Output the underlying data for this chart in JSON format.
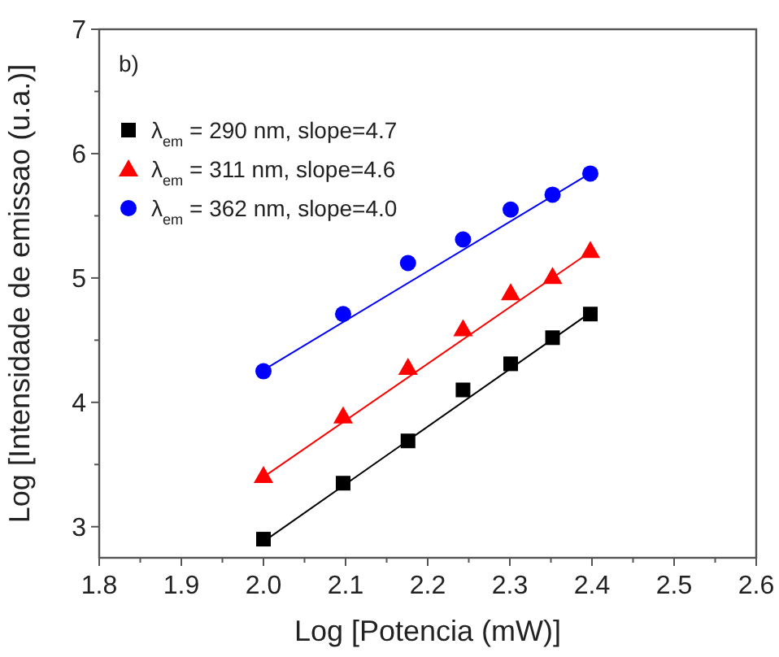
{
  "chart_data": {
    "type": "scatter",
    "xlabel": "Log [Potencia (mW)]",
    "ylabel": "Log [Intensidade de emissao (u.a.)]",
    "annotations": [
      "b)"
    ],
    "xlim": [
      1.8,
      2.6
    ],
    "xticks": [
      1.8,
      {
        "value": 1.85,
        "label": null
      },
      1.9,
      {
        "value": 1.95,
        "label": null
      },
      {
        "value": 2,
        "label": "2.0"
      },
      {
        "value": 2.05,
        "label": null
      },
      2.1,
      {
        "value": 2.15,
        "label": null
      },
      2.2,
      {
        "value": 2.25,
        "label": null
      },
      2.3,
      {
        "value": 2.35,
        "label": null
      },
      2.4,
      {
        "value": 2.45,
        "label": null
      },
      2.5,
      {
        "value": 2.55,
        "label": null
      },
      2.6
    ],
    "ylim": [
      2.75,
      7
    ],
    "yticks": [
      3,
      {
        "value": 3.5,
        "label": null
      },
      4,
      {
        "value": 4.5,
        "label": null
      },
      5,
      {
        "value": 5.5,
        "label": null
      },
      6,
      {
        "value": 6.5,
        "label": null
      },
      7
    ],
    "grid": false,
    "legend": "top left",
    "series": [
      {
        "name": "λ$_{em}$ = 290 nm, slope=4.7",
        "color": "#000000",
        "marker": "square",
        "x": [
          2.0,
          2.097,
          2.176,
          2.243,
          2.301,
          2.352,
          2.398
        ],
        "values": [
          2.9,
          3.35,
          3.69,
          4.1,
          4.31,
          4.52,
          4.71
        ]
      },
      {
        "name": "λ$_{em}$ = 311 nm, slope=4.6",
        "color": "#ff0000",
        "marker": "triangle",
        "x": [
          2.0,
          2.097,
          2.176,
          2.243,
          2.301,
          2.352,
          2.398
        ],
        "values": [
          3.41,
          3.89,
          4.28,
          4.59,
          4.88,
          5.01,
          5.22
        ]
      },
      {
        "name": "λ$_{em}$ = 362 nm, slope=4.0",
        "color": "#0000ff",
        "marker": "circle",
        "x": [
          2.0,
          2.097,
          2.176,
          2.243,
          2.301,
          2.352,
          2.398
        ],
        "values": [
          4.25,
          4.71,
          5.12,
          5.31,
          5.55,
          5.67,
          5.84
        ]
      },
      {
        "type": "line",
        "color": "#000000",
        "marker": "none",
        "x": [
          2.0,
          2.4
        ],
        "values": [
          2.88,
          4.73
        ]
      },
      {
        "type": "line",
        "color": "#ff0000",
        "marker": "none",
        "x": [
          2.0,
          2.4
        ],
        "values": [
          3.4,
          5.22
        ]
      },
      {
        "type": "line",
        "color": "#0000ff",
        "marker": "none",
        "x": [
          2.0,
          2.4
        ],
        "values": [
          4.26,
          5.85
        ]
      }
    ]
  }
}
